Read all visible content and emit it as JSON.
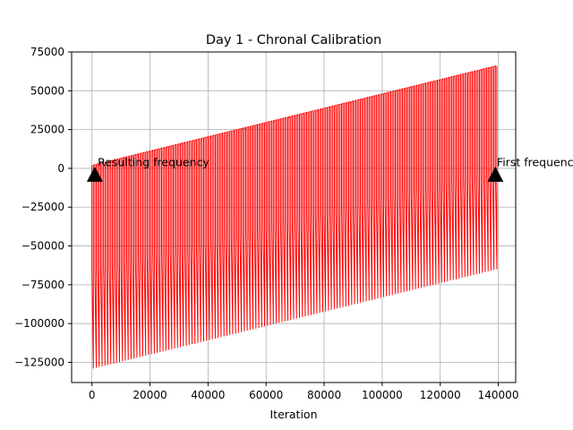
{
  "chart_data": {
    "type": "line",
    "title": "Day 1 - Chronal Calibration",
    "xlabel": "Iteration",
    "ylabel": "",
    "xlim": [
      -7000,
      146000
    ],
    "ylim": [
      -138000,
      75000
    ],
    "xticks": [
      0,
      20000,
      40000,
      60000,
      80000,
      100000,
      120000,
      140000
    ],
    "yticks": [
      75000,
      50000,
      25000,
      0,
      -25000,
      -50000,
      -75000,
      -100000,
      -125000
    ],
    "grid": true,
    "legend": "none",
    "series": [
      {
        "color": "#ff0000",
        "description_of_shape": "oscillating frequency trace",
        "x_range": [
          0,
          139000
        ],
        "upper_envelope": [
          [
            0,
            2000
          ],
          [
            139000,
            66000
          ]
        ],
        "mid_envelope": [
          [
            0,
            -65000
          ],
          [
            139000,
            -1000
          ]
        ],
        "lower_envelope": [
          [
            0,
            -129000
          ],
          [
            139000,
            -65000
          ]
        ],
        "spike_spacing": 1000
      }
    ],
    "annotations": [
      {
        "text": "Resulting frequency",
        "marker_x": 1000,
        "marker_y": -4000,
        "text_x": 2000,
        "text_y": 1500
      },
      {
        "text": "First frequency",
        "marker_x": 139000,
        "marker_y": -4000,
        "text_x": 139500,
        "text_y": 1500
      }
    ],
    "colors": {
      "line": "#ff0000",
      "marker": "#000000",
      "grid": "#b0b0b0"
    }
  }
}
